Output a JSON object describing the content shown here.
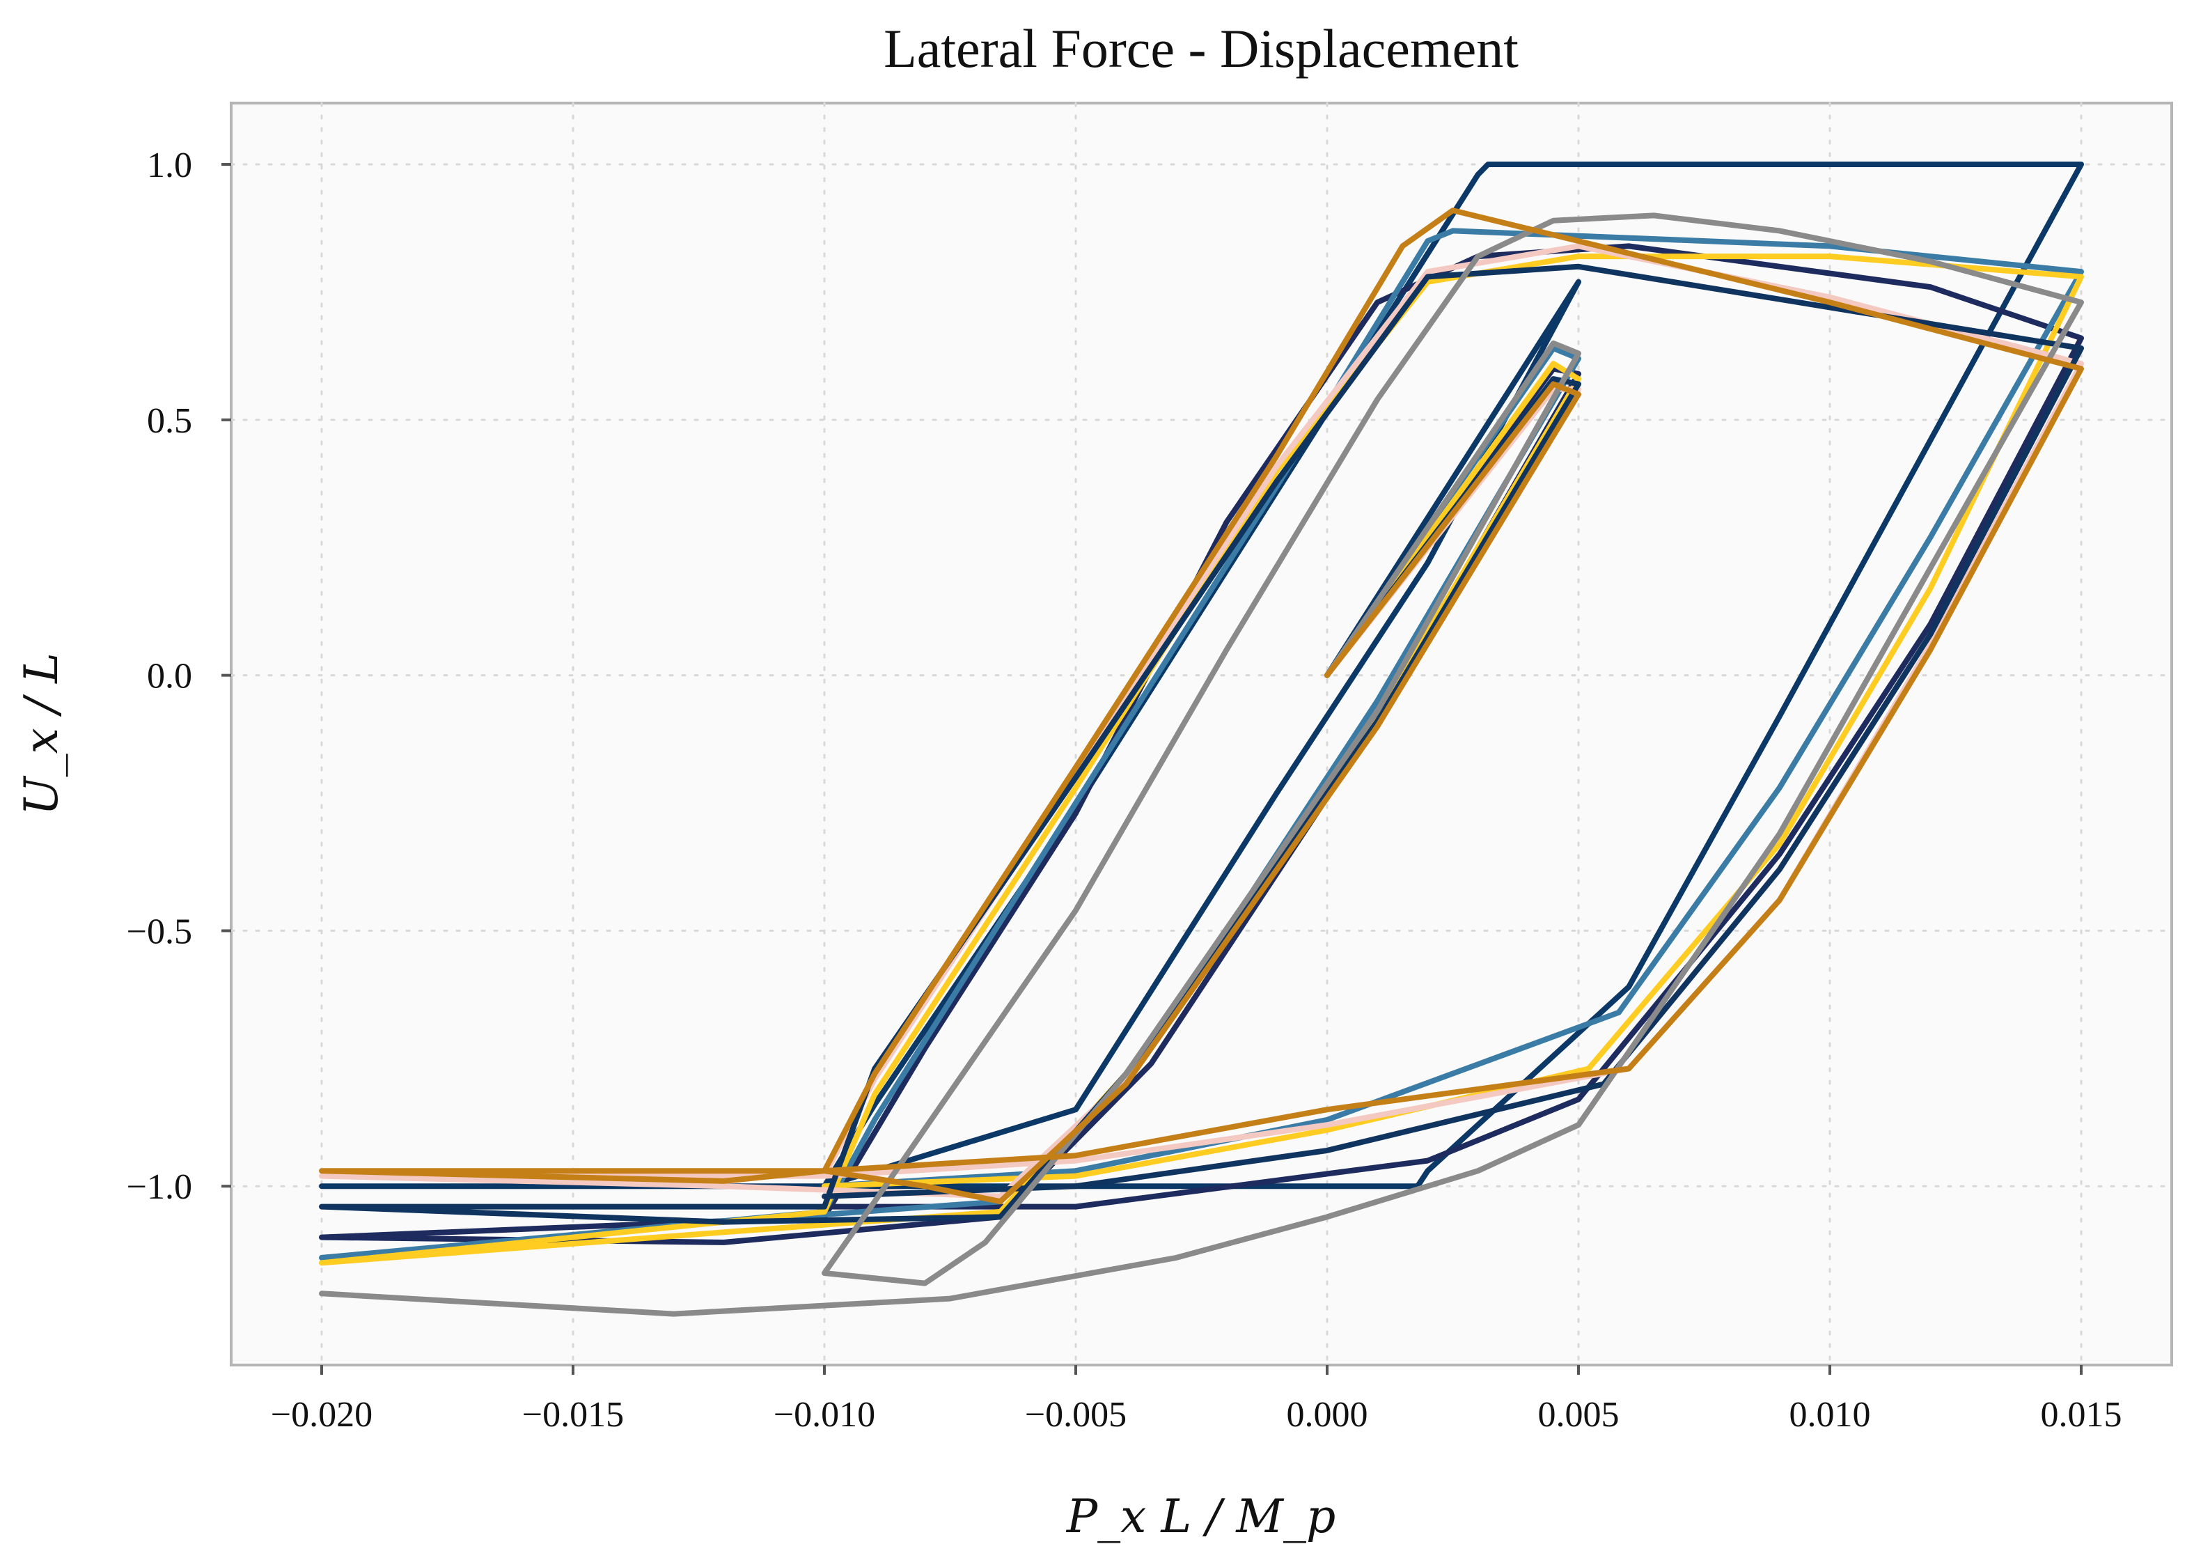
{
  "chart_data": {
    "type": "line",
    "title": "Lateral Force - Displacement",
    "xlabel": "P_x L / M_p",
    "ylabel": "U_x / L",
    "xlim": [
      -0.0218,
      0.0168
    ],
    "ylim": [
      -1.35,
      1.12
    ],
    "xticks": [
      -0.02,
      -0.015,
      -0.01,
      -0.005,
      0.0,
      0.005,
      0.01,
      0.015
    ],
    "xtick_labels": [
      "−0.020",
      "−0.015",
      "−0.010",
      "−0.005",
      "0.000",
      "0.005",
      "0.010",
      "0.015"
    ],
    "yticks": [
      -1.0,
      -0.5,
      0.0,
      0.5,
      1.0
    ],
    "ytick_labels": [
      "−1.0",
      "−0.5",
      "0.0",
      "0.5",
      "1.0"
    ],
    "grid": true,
    "legend": "none",
    "series": [
      {
        "color": "#0b3866",
        "points": [
          [
            0,
            0
          ],
          [
            0.005,
            0.77
          ],
          [
            0.002,
            0.22
          ],
          [
            -0.001,
            -0.23
          ],
          [
            -0.005,
            -0.85
          ],
          [
            -0.01,
            -1.0
          ],
          [
            -0.02,
            -1.0
          ],
          [
            -0.01,
            -1.0
          ],
          [
            -0.009,
            -0.84
          ],
          [
            -0.005,
            -0.26
          ],
          [
            -0.001,
            0.36
          ],
          [
            0.003,
            0.98
          ],
          [
            0.0032,
            1.0
          ],
          [
            0.015,
            1.0
          ],
          [
            0.012,
            0.46
          ],
          [
            0.009,
            -0.08
          ],
          [
            0.006,
            -0.61
          ],
          [
            0.002,
            -0.97
          ],
          [
            0.0018,
            -1.0
          ],
          [
            -0.005,
            -1.0
          ],
          [
            -0.01,
            -1.0
          ]
        ]
      },
      {
        "color": "#1e2b5e",
        "points": [
          [
            0,
            0
          ],
          [
            0.0045,
            0.6
          ],
          [
            0.005,
            0.59
          ],
          [
            0.001,
            -0.09
          ],
          [
            -0.0035,
            -0.76
          ],
          [
            -0.0065,
            -1.06
          ],
          [
            -0.012,
            -1.11
          ],
          [
            -0.02,
            -1.1
          ],
          [
            -0.01,
            -1.06
          ],
          [
            -0.008,
            -0.73
          ],
          [
            -0.005,
            -0.27
          ],
          [
            -0.002,
            0.3
          ],
          [
            0.001,
            0.73
          ],
          [
            0.003,
            0.82
          ],
          [
            0.006,
            0.84
          ],
          [
            0.012,
            0.76
          ],
          [
            0.015,
            0.66
          ],
          [
            0.012,
            0.1
          ],
          [
            0.009,
            -0.35
          ],
          [
            0.005,
            -0.83
          ],
          [
            0.002,
            -0.95
          ],
          [
            -0.005,
            -1.04
          ],
          [
            -0.01,
            -1.04
          ]
        ]
      },
      {
        "color": "#3a7ca5",
        "points": [
          [
            0,
            0
          ],
          [
            0.0045,
            0.64
          ],
          [
            0.005,
            0.62
          ],
          [
            0.001,
            -0.05
          ],
          [
            -0.004,
            -0.8
          ],
          [
            -0.0065,
            -1.03
          ],
          [
            -0.012,
            -1.07
          ],
          [
            -0.02,
            -1.14
          ],
          [
            -0.01,
            -1.05
          ],
          [
            -0.009,
            -0.87
          ],
          [
            -0.005,
            -0.25
          ],
          [
            -0.001,
            0.37
          ],
          [
            0.002,
            0.85
          ],
          [
            0.0025,
            0.87
          ],
          [
            0.005,
            0.86
          ],
          [
            0.01,
            0.84
          ],
          [
            0.015,
            0.79
          ],
          [
            0.012,
            0.27
          ],
          [
            0.009,
            -0.22
          ],
          [
            0.0058,
            -0.66
          ],
          [
            0.0,
            -0.87
          ],
          [
            -0.005,
            -0.97
          ],
          [
            -0.01,
            -1.0
          ]
        ]
      },
      {
        "color": "#ffcc22",
        "points": [
          [
            0,
            0
          ],
          [
            0.0045,
            0.61
          ],
          [
            0.005,
            0.58
          ],
          [
            0.001,
            -0.08
          ],
          [
            -0.004,
            -0.78
          ],
          [
            -0.0065,
            -1.05
          ],
          [
            -0.012,
            -1.09
          ],
          [
            -0.02,
            -1.15
          ],
          [
            -0.01,
            -1.05
          ],
          [
            -0.009,
            -0.82
          ],
          [
            -0.005,
            -0.22
          ],
          [
            -0.001,
            0.4
          ],
          [
            0.002,
            0.77
          ],
          [
            0.005,
            0.82
          ],
          [
            0.01,
            0.82
          ],
          [
            0.015,
            0.78
          ],
          [
            0.012,
            0.17
          ],
          [
            0.009,
            -0.33
          ],
          [
            0.0052,
            -0.77
          ],
          [
            0.0,
            -0.89
          ],
          [
            -0.005,
            -0.98
          ],
          [
            -0.01,
            -1.0
          ]
        ]
      },
      {
        "color": "#f4c9c2",
        "points": [
          [
            0,
            0
          ],
          [
            0.0045,
            0.56
          ],
          [
            0.005,
            0.56
          ],
          [
            0.001,
            -0.1
          ],
          [
            -0.004,
            -0.79
          ],
          [
            -0.0065,
            -1.02
          ],
          [
            -0.012,
            -1.0
          ],
          [
            -0.02,
            -0.98
          ],
          [
            -0.01,
            -0.98
          ],
          [
            -0.009,
            -0.79
          ],
          [
            -0.005,
            -0.19
          ],
          [
            -0.001,
            0.41
          ],
          [
            0.002,
            0.79
          ],
          [
            0.005,
            0.84
          ],
          [
            0.01,
            0.74
          ],
          [
            0.015,
            0.61
          ],
          [
            0.012,
            0.06
          ],
          [
            0.009,
            -0.44
          ],
          [
            0.006,
            -0.77
          ],
          [
            0.0,
            -0.88
          ],
          [
            -0.005,
            -0.95
          ],
          [
            -0.01,
            -0.98
          ]
        ]
      },
      {
        "color": "#0f3460",
        "points": [
          [
            0,
            0
          ],
          [
            0.0045,
            0.58
          ],
          [
            0.005,
            0.57
          ],
          [
            0.001,
            -0.09
          ],
          [
            -0.004,
            -0.78
          ],
          [
            -0.0065,
            -1.06
          ],
          [
            -0.012,
            -1.07
          ],
          [
            -0.02,
            -1.04
          ],
          [
            -0.01,
            -1.04
          ],
          [
            -0.009,
            -0.77
          ],
          [
            -0.005,
            -0.2
          ],
          [
            -0.001,
            0.38
          ],
          [
            0.002,
            0.78
          ],
          [
            0.005,
            0.8
          ],
          [
            0.01,
            0.72
          ],
          [
            0.015,
            0.64
          ],
          [
            0.012,
            0.08
          ],
          [
            0.009,
            -0.38
          ],
          [
            0.0055,
            -0.8
          ],
          [
            0.0,
            -0.93
          ],
          [
            -0.005,
            -1.0
          ],
          [
            -0.01,
            -1.02
          ]
        ]
      },
      {
        "color": "#8a8a8a",
        "points": [
          [
            0,
            0
          ],
          [
            0.0045,
            0.65
          ],
          [
            0.005,
            0.63
          ],
          [
            0.001,
            -0.07
          ],
          [
            -0.004,
            -0.78
          ],
          [
            -0.0068,
            -1.11
          ],
          [
            -0.008,
            -1.19
          ],
          [
            -0.01,
            -1.17
          ],
          [
            -0.009,
            -1.03
          ],
          [
            -0.005,
            -0.46
          ],
          [
            -0.002,
            0.05
          ],
          [
            0.001,
            0.54
          ],
          [
            0.003,
            0.82
          ],
          [
            0.0045,
            0.89
          ],
          [
            0.0065,
            0.9
          ],
          [
            0.009,
            0.87
          ],
          [
            0.012,
            0.81
          ],
          [
            0.015,
            0.73
          ],
          [
            0.012,
            0.21
          ],
          [
            0.009,
            -0.31
          ],
          [
            0.005,
            -0.88
          ],
          [
            0.003,
            -0.97
          ],
          [
            0.0,
            -1.06
          ],
          [
            -0.003,
            -1.14
          ],
          [
            -0.0075,
            -1.22
          ],
          [
            -0.013,
            -1.25
          ],
          [
            -0.02,
            -1.21
          ]
        ]
      },
      {
        "color": "#c47f17",
        "points": [
          [
            0,
            0
          ],
          [
            0.0045,
            0.57
          ],
          [
            0.005,
            0.55
          ],
          [
            0.001,
            -0.1
          ],
          [
            -0.004,
            -0.8
          ],
          [
            -0.0065,
            -1.03
          ],
          [
            -0.008,
            -1.0
          ],
          [
            -0.01,
            -0.97
          ],
          [
            -0.012,
            -0.99
          ],
          [
            -0.02,
            -0.97
          ],
          [
            -0.01,
            -0.97
          ],
          [
            -0.009,
            -0.78
          ],
          [
            -0.005,
            -0.18
          ],
          [
            -0.001,
            0.43
          ],
          [
            0.0015,
            0.84
          ],
          [
            0.0025,
            0.91
          ],
          [
            0.005,
            0.85
          ],
          [
            0.01,
            0.73
          ],
          [
            0.015,
            0.6
          ],
          [
            0.012,
            0.05
          ],
          [
            0.009,
            -0.44
          ],
          [
            0.006,
            -0.77
          ],
          [
            0.0,
            -0.85
          ],
          [
            -0.005,
            -0.94
          ],
          [
            -0.01,
            -0.97
          ]
        ]
      }
    ]
  }
}
